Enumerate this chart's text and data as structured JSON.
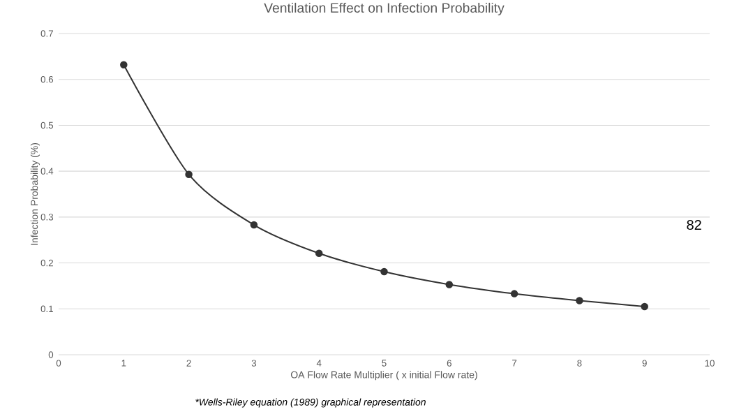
{
  "chart_data": {
    "type": "line",
    "title": "Ventilation Effect on Infection Probability",
    "xlabel": "OA Flow Rate Multiplier ( x initial Flow rate)",
    "ylabel": "Infection Probability (%)",
    "x": [
      1,
      2,
      3,
      4,
      5,
      6,
      7,
      8,
      9
    ],
    "series": [
      {
        "color": "#333333",
        "values": [
          0.632,
          0.393,
          0.283,
          0.221,
          0.181,
          0.153,
          0.133,
          0.118,
          0.105
        ]
      }
    ],
    "xlim": [
      0,
      10
    ],
    "xticks": [
      0,
      1,
      2,
      3,
      4,
      5,
      6,
      7,
      8,
      9,
      10
    ],
    "ylim": [
      0,
      0.7
    ],
    "yticks": [
      0,
      0.1,
      0.2,
      0.3,
      0.4,
      0.5,
      0.6,
      0.7
    ],
    "grid": "y",
    "marker": "circle",
    "line_style": "solid",
    "annotations": [
      "*Wells-Riley equation (1989) graphical representation",
      "82"
    ]
  }
}
